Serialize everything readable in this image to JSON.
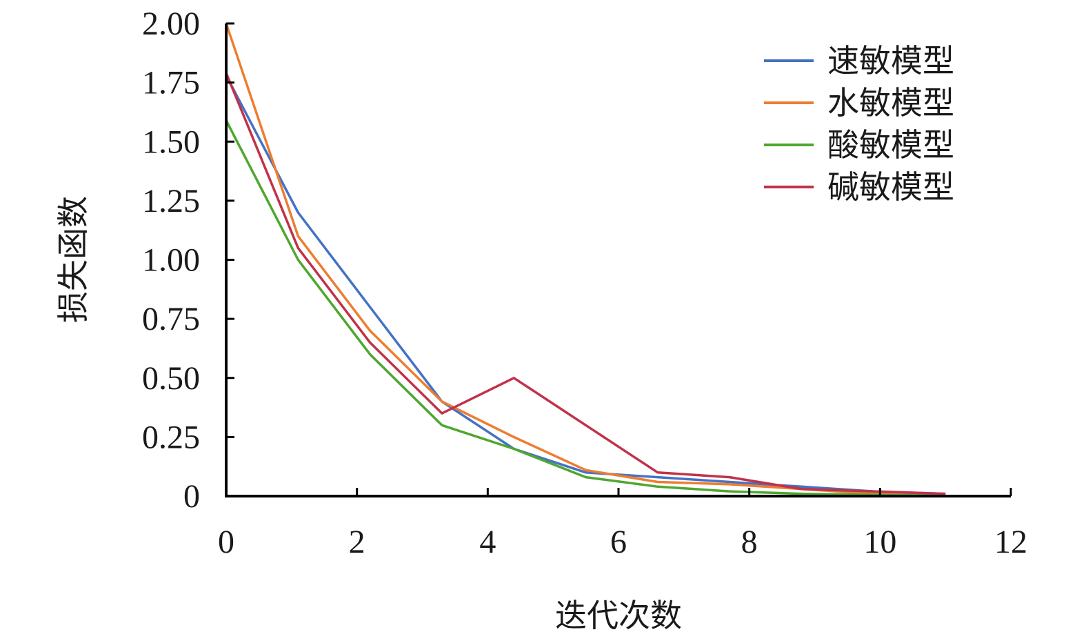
{
  "chart_data": {
    "type": "line",
    "xlabel": "迭代次数",
    "ylabel": "损失函数",
    "xlim": [
      0,
      12
    ],
    "ylim": [
      0,
      2.0
    ],
    "xticks": [
      0,
      2,
      4,
      6,
      8,
      10,
      12
    ],
    "xtick_labels": [
      "0",
      "2",
      "4",
      "6",
      "8",
      "10",
      "12"
    ],
    "yticks": [
      0,
      0.25,
      0.5,
      0.75,
      1.0,
      1.25,
      1.5,
      1.75,
      2.0
    ],
    "ytick_labels": [
      "0",
      "0.25",
      "0.50",
      "0.75",
      "1.00",
      "1.25",
      "1.50",
      "1.75",
      "2.00"
    ],
    "grid": false,
    "legend_position": "top-right",
    "x": [
      0,
      1.1,
      2.2,
      3.3,
      4.4,
      5.5,
      6.6,
      7.7,
      8.8,
      9.9,
      11.0
    ],
    "series": [
      {
        "name": "速敏模型",
        "color": "#4472c4",
        "values": [
          1.78,
          1.2,
          0.8,
          0.4,
          0.2,
          0.1,
          0.08,
          0.06,
          0.04,
          0.02,
          0.01
        ]
      },
      {
        "name": "水敏模型",
        "color": "#ed7d31",
        "values": [
          2.0,
          1.1,
          0.7,
          0.4,
          0.25,
          0.11,
          0.06,
          0.05,
          0.03,
          0.01,
          0.005
        ]
      },
      {
        "name": "酸敏模型",
        "color": "#4ea72e",
        "values": [
          1.59,
          1.0,
          0.6,
          0.3,
          0.2,
          0.08,
          0.04,
          0.02,
          0.01,
          0.005,
          0.002
        ]
      },
      {
        "name": "碱敏模型",
        "color": "#c0324a",
        "values": [
          1.79,
          1.05,
          0.65,
          0.35,
          0.5,
          0.3,
          0.1,
          0.08,
          0.03,
          0.02,
          0.01
        ]
      }
    ]
  }
}
